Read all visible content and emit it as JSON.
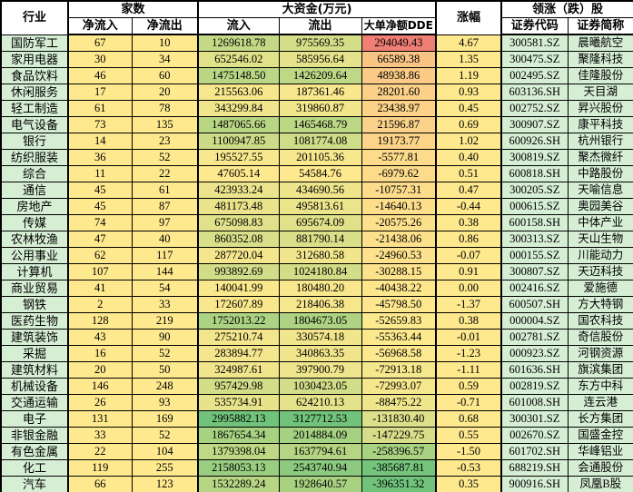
{
  "table": {
    "header": {
      "industry": "行业",
      "count_group": "家数",
      "net_in": "净流入",
      "net_out": "净流出",
      "funds_group": "大资金(万元)",
      "inflow": "流入",
      "outflow": "流出",
      "dde": "大单净额DDE",
      "change": "涨幅",
      "leader_group": "领涨（跌）股",
      "code": "证券代码",
      "name": "证券简称"
    },
    "colors": {
      "header_bg": "#ffffff",
      "mint": "#d6eed4",
      "scale_yellow": "#fee98e",
      "scale_green": "#71c37b",
      "scale_red": "#ef7e74",
      "border": "#000000"
    },
    "rows": [
      {
        "industry": "国防军工",
        "net_in": "67",
        "net_out": "10",
        "inflow": "1269618.78",
        "outflow": "975569.35",
        "dde": "294049.43",
        "change": "4.67",
        "code": "300581.SZ",
        "name": "晨曦航空"
      },
      {
        "industry": "家用电器",
        "net_in": "30",
        "net_out": "34",
        "inflow": "652546.02",
        "outflow": "585956.64",
        "dde": "66589.38",
        "change": "1.35",
        "code": "300475.SZ",
        "name": "聚隆科技"
      },
      {
        "industry": "食品饮料",
        "net_in": "46",
        "net_out": "60",
        "inflow": "1475148.50",
        "outflow": "1426209.64",
        "dde": "48938.86",
        "change": "1.19",
        "code": "002495.SZ",
        "name": "佳隆股份"
      },
      {
        "industry": "休闲服务",
        "net_in": "17",
        "net_out": "20",
        "inflow": "215563.06",
        "outflow": "187361.46",
        "dde": "28201.60",
        "change": "0.93",
        "code": "603136.SH",
        "name": "天目湖"
      },
      {
        "industry": "轻工制造",
        "net_in": "61",
        "net_out": "78",
        "inflow": "343299.84",
        "outflow": "319860.87",
        "dde": "23438.97",
        "change": "0.45",
        "code": "002752.SZ",
        "name": "昇兴股份"
      },
      {
        "industry": "电气设备",
        "net_in": "73",
        "net_out": "135",
        "inflow": "1487065.66",
        "outflow": "1465468.79",
        "dde": "21596.87",
        "change": "0.69",
        "code": "300907.SZ",
        "name": "康平科技"
      },
      {
        "industry": "银行",
        "net_in": "14",
        "net_out": "23",
        "inflow": "1100947.85",
        "outflow": "1081774.08",
        "dde": "19173.77",
        "change": "1.02",
        "code": "600926.SH",
        "name": "杭州银行"
      },
      {
        "industry": "纺织服装",
        "net_in": "36",
        "net_out": "52",
        "inflow": "195527.55",
        "outflow": "201105.36",
        "dde": "-5577.81",
        "change": "0.40",
        "code": "300819.SZ",
        "name": "聚杰微纤"
      },
      {
        "industry": "综合",
        "net_in": "11",
        "net_out": "22",
        "inflow": "47605.14",
        "outflow": "54584.76",
        "dde": "-6979.62",
        "change": "0.51",
        "code": "600818.SH",
        "name": "中路股份"
      },
      {
        "industry": "通信",
        "net_in": "45",
        "net_out": "61",
        "inflow": "423933.24",
        "outflow": "434690.56",
        "dde": "-10757.31",
        "change": "0.47",
        "code": "300205.SZ",
        "name": "天喻信息"
      },
      {
        "industry": "房地产",
        "net_in": "45",
        "net_out": "87",
        "inflow": "481173.48",
        "outflow": "495813.61",
        "dde": "-14640.13",
        "change": "-0.44",
        "code": "000615.SZ",
        "name": "奥园美谷"
      },
      {
        "industry": "传媒",
        "net_in": "74",
        "net_out": "97",
        "inflow": "675098.83",
        "outflow": "695674.09",
        "dde": "-20575.26",
        "change": "0.38",
        "code": "600158.SH",
        "name": "中体产业"
      },
      {
        "industry": "农林牧渔",
        "net_in": "47",
        "net_out": "40",
        "inflow": "860352.08",
        "outflow": "881790.14",
        "dde": "-21438.06",
        "change": "0.86",
        "code": "300313.SZ",
        "name": "天山生物"
      },
      {
        "industry": "公用事业",
        "net_in": "62",
        "net_out": "117",
        "inflow": "287720.04",
        "outflow": "312680.58",
        "dde": "-24960.53",
        "change": "-0.07",
        "code": "000155.SZ",
        "name": "川能动力"
      },
      {
        "industry": "计算机",
        "net_in": "107",
        "net_out": "144",
        "inflow": "993892.69",
        "outflow": "1024180.84",
        "dde": "-30288.15",
        "change": "0.91",
        "code": "300807.SZ",
        "name": "天迈科技"
      },
      {
        "industry": "商业贸易",
        "net_in": "41",
        "net_out": "54",
        "inflow": "140041.99",
        "outflow": "180480.20",
        "dde": "-40438.22",
        "change": "0.00",
        "code": "002416.SZ",
        "name": "爱施德"
      },
      {
        "industry": "钢铁",
        "net_in": "2",
        "net_out": "33",
        "inflow": "172607.89",
        "outflow": "218406.38",
        "dde": "-45798.50",
        "change": "-1.37",
        "code": "600507.SH",
        "name": "方大特钢"
      },
      {
        "industry": "医药生物",
        "net_in": "128",
        "net_out": "219",
        "inflow": "1752013.22",
        "outflow": "1804673.05",
        "dde": "-52659.83",
        "change": "0.38",
        "code": "000004.SZ",
        "name": "国农科技"
      },
      {
        "industry": "建筑装饰",
        "net_in": "43",
        "net_out": "90",
        "inflow": "275210.74",
        "outflow": "330574.18",
        "dde": "-55363.44",
        "change": "-0.01",
        "code": "002781.SZ",
        "name": "奇信股份"
      },
      {
        "industry": "采掘",
        "net_in": "16",
        "net_out": "52",
        "inflow": "283894.77",
        "outflow": "340863.35",
        "dde": "-56968.58",
        "change": "-1.23",
        "code": "000923.SZ",
        "name": "河钢资源"
      },
      {
        "industry": "建筑材料",
        "net_in": "20",
        "net_out": "50",
        "inflow": "324987.61",
        "outflow": "397900.79",
        "dde": "-72913.18",
        "change": "-1.11",
        "code": "601636.SH",
        "name": "旗滨集团"
      },
      {
        "industry": "机械设备",
        "net_in": "146",
        "net_out": "248",
        "inflow": "957429.98",
        "outflow": "1030423.05",
        "dde": "-72993.07",
        "change": "0.59",
        "code": "002819.SZ",
        "name": "东方中科"
      },
      {
        "industry": "交通运输",
        "net_in": "26",
        "net_out": "93",
        "inflow": "535734.91",
        "outflow": "624210.13",
        "dde": "-88475.22",
        "change": "-0.71",
        "code": "601008.SH",
        "name": "连云港"
      },
      {
        "industry": "电子",
        "net_in": "131",
        "net_out": "169",
        "inflow": "2995882.13",
        "outflow": "3127712.53",
        "dde": "-131830.40",
        "change": "0.68",
        "code": "300301.SZ",
        "name": "长方集团"
      },
      {
        "industry": "非银金融",
        "net_in": "33",
        "net_out": "52",
        "inflow": "1867654.34",
        "outflow": "2014884.09",
        "dde": "-147229.75",
        "change": "0.55",
        "code": "002670.SZ",
        "name": "国盛金控"
      },
      {
        "industry": "有色金属",
        "net_in": "22",
        "net_out": "104",
        "inflow": "1379398.04",
        "outflow": "1637794.61",
        "dde": "-258396.57",
        "change": "-1.50",
        "code": "601702.SH",
        "name": "华峰铝业"
      },
      {
        "industry": "化工",
        "net_in": "119",
        "net_out": "255",
        "inflow": "2158053.13",
        "outflow": "2543740.94",
        "dde": "-385687.81",
        "change": "-0.53",
        "code": "688219.SH",
        "name": "会通股份"
      },
      {
        "industry": "汽车",
        "net_in": "66",
        "net_out": "123",
        "inflow": "1532289.24",
        "outflow": "1928640.57",
        "dde": "-396351.32",
        "change": "0.35",
        "code": "900916.SH",
        "name": "凤凰B股"
      }
    ]
  }
}
